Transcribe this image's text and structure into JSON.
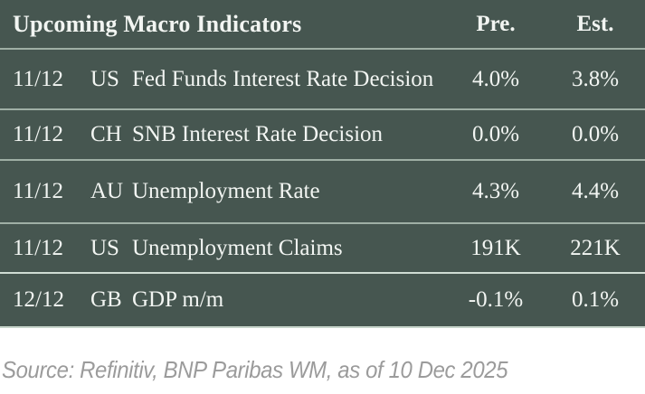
{
  "table": {
    "title": "Upcoming Macro Indicators",
    "columns": {
      "pre": "Pre.",
      "est": "Est."
    },
    "rows": [
      {
        "date": "11/12",
        "country": "US",
        "indicator": "Fed Funds Interest Rate Decision",
        "pre": "4.0%",
        "est": "3.8%"
      },
      {
        "date": "11/12",
        "country": "CH",
        "indicator": "SNB Interest Rate Decision",
        "pre": "0.0%",
        "est": "0.0%"
      },
      {
        "date": "11/12",
        "country": "AU",
        "indicator": "Unemployment Rate",
        "pre": "4.3%",
        "est": "4.4%"
      },
      {
        "date": "11/12",
        "country": "US",
        "indicator": "Unemployment Claims",
        "pre": "191K",
        "est": "221K"
      },
      {
        "date": "12/12",
        "country": "GB",
        "indicator": "GDP m/m",
        "pre": "-0.1%",
        "est": "0.1%"
      }
    ]
  },
  "footer": {
    "source": "Source: Refinitiv, BNP Paribas WM, as of 10 Dec 2025"
  },
  "colors": {
    "table_bg": "#465650",
    "divider": "#9fafa5",
    "divider_light": "#cfdcd3",
    "table_bottom_edge": "#c6d4ca",
    "table_text": "#f2f5f2",
    "source_text": "#9b9b9b",
    "page_bg": "#ffffff"
  }
}
